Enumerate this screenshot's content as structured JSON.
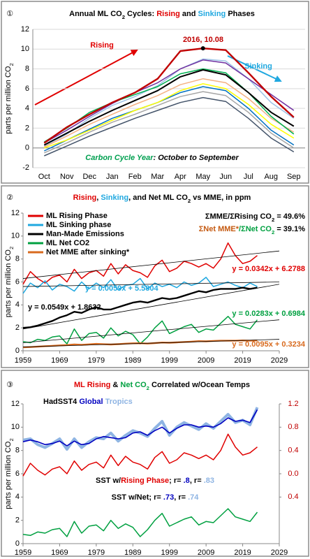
{
  "chart_data": [
    {
      "type": "line",
      "label": "①",
      "title": [
        {
          "text": "Annual ML CO"
        },
        {
          "text": "2",
          "sub": true
        },
        {
          "text": " Cycles: "
        },
        {
          "text": "Rising",
          "color": "#e00000"
        },
        {
          "text": " and "
        },
        {
          "text": "Sinking",
          "color": "#1fa8e0"
        },
        {
          "text": " Phases"
        }
      ],
      "ylabel": [
        {
          "text": "parts per million CO"
        },
        {
          "text": "2",
          "sub": true
        }
      ],
      "categories": [
        "Oct",
        "Nov",
        "Dec",
        "Jan",
        "Feb",
        "Mar",
        "Apr",
        "May",
        "Jun",
        "Jul",
        "Aug",
        "Sep"
      ],
      "ylim": [
        -2,
        12
      ],
      "yticks": [
        -2,
        0,
        2,
        4,
        6,
        8,
        10,
        12
      ],
      "grid": true,
      "series": [
        {
          "color": "#a6a6a6",
          "values": [
            -0.5,
            0.5,
            1.6,
            2.6,
            3.4,
            4.3,
            5.2,
            5.7,
            5.3,
            3.6,
            1.5,
            0.0
          ]
        },
        {
          "color": "#44546a",
          "values": [
            -0.8,
            0.2,
            1.2,
            2.1,
            3.0,
            3.8,
            4.6,
            5.1,
            4.7,
            3.0,
            1.0,
            -0.4
          ]
        },
        {
          "color": "#9dc3e6",
          "values": [
            0.2,
            1.4,
            3.0,
            4.3,
            5.2,
            6.3,
            8.0,
            9.0,
            8.8,
            7.0,
            4.6,
            3.0
          ]
        },
        {
          "color": "#f4b183",
          "values": [
            0.1,
            1.2,
            2.4,
            3.4,
            4.4,
            5.3,
            6.4,
            7.0,
            6.6,
            5.0,
            3.0,
            1.6
          ]
        },
        {
          "color": "#0070c0",
          "values": [
            -0.3,
            0.8,
            1.9,
            3.0,
            3.8,
            4.6,
            5.6,
            6.2,
            5.8,
            4.0,
            1.8,
            0.3
          ]
        },
        {
          "color": "#ffff00",
          "values": [
            0.0,
            0.8,
            1.8,
            2.8,
            3.8,
            4.6,
            5.8,
            6.5,
            6.0,
            4.4,
            2.4,
            1.0
          ]
        },
        {
          "color": "#7030a0",
          "values": [
            0.5,
            1.8,
            3.2,
            4.5,
            5.6,
            6.6,
            8.0,
            8.9,
            8.6,
            7.0,
            5.4,
            3.8
          ]
        },
        {
          "color": "#00b050",
          "values": [
            0.6,
            2.0,
            3.6,
            4.6,
            5.4,
            6.2,
            7.5,
            8.0,
            7.6,
            5.6,
            3.2,
            1.4
          ]
        },
        {
          "color": "#000000",
          "values": [
            0.3,
            1.5,
            2.7,
            3.8,
            4.8,
            5.8,
            7.2,
            7.9,
            7.4,
            5.6,
            3.6,
            2.2
          ]
        },
        {
          "color": "#c00000",
          "values": [
            0.5,
            2.1,
            3.4,
            4.6,
            5.6,
            7.0,
            9.8,
            10.08,
            9.9,
            7.6,
            5.2,
            3.1
          ]
        }
      ],
      "annotations": [
        [
          {
            "text": "2016, 10.08",
            "color": "#c00000"
          }
        ],
        [
          {
            "text": "Rising",
            "color": "#e00000"
          }
        ],
        [
          {
            "text": "Sinking",
            "color": "#1fa8e0"
          }
        ],
        [
          {
            "text": "Carbon Cycle Year",
            "color": "#00a050",
            "italic": true
          },
          {
            "text": ": October to September",
            "italic": true
          }
        ]
      ]
    },
    {
      "type": "line",
      "label": "②",
      "title": [
        {
          "text": "Rising",
          "color": "#e00000"
        },
        {
          "text": ", "
        },
        {
          "text": "Sinking",
          "color": "#1fa8e0"
        },
        {
          "text": ", and Net ML CO"
        },
        {
          "text": "2",
          "sub": true
        },
        {
          "text": " vs MME, in ppm"
        }
      ],
      "ylabel": [
        {
          "text": "parts per million CO"
        },
        {
          "text": "2",
          "sub": true
        }
      ],
      "x": [
        1959,
        1961,
        1963,
        1965,
        1967,
        1969,
        1971,
        1973,
        1975,
        1977,
        1979,
        1981,
        1983,
        1985,
        1987,
        1989,
        1991,
        1993,
        1995,
        1997,
        1999,
        2001,
        2003,
        2005,
        2007,
        2009,
        2011,
        2013,
        2015,
        2017,
        2019,
        2021,
        2023
      ],
      "xlim": [
        1959,
        2029
      ],
      "xticks": [
        1959,
        1969,
        1979,
        1989,
        1999,
        2009,
        2019,
        2029
      ],
      "ylim": [
        0,
        12
      ],
      "yticks": [
        0,
        2,
        4,
        6,
        8,
        10,
        12
      ],
      "grid": false,
      "series": [
        {
          "name": "ML Rising Phase",
          "color": "#e00000",
          "values": [
            5.8,
            6.9,
            6.3,
            5.9,
            6.4,
            6.6,
            6.0,
            7.1,
            6.3,
            6.8,
            7.0,
            6.5,
            7.6,
            6.7,
            7.5,
            7.0,
            6.8,
            6.4,
            7.4,
            7.9,
            6.9,
            7.2,
            7.8,
            7.6,
            7.3,
            7.6,
            7.2,
            8.0,
            9.4,
            8.3,
            7.6,
            7.8,
            8.3
          ]
        },
        {
          "name": "ML Sinking phase",
          "color": "#1fa8e0",
          "values": [
            5.0,
            5.9,
            5.5,
            6.1,
            5.3,
            5.8,
            5.6,
            5.2,
            6.0,
            5.4,
            5.9,
            5.5,
            6.2,
            5.3,
            5.7,
            5.8,
            6.3,
            5.4,
            5.9,
            5.6,
            5.8,
            5.5,
            6.0,
            5.7,
            5.9,
            6.4,
            5.6,
            5.8,
            6.0,
            5.7,
            5.5,
            5.9,
            5.6
          ]
        },
        {
          "name": "Man-Made Emissions",
          "color": "#000000",
          "values": [
            2.0,
            2.05,
            2.2,
            2.4,
            2.6,
            2.9,
            3.1,
            3.4,
            3.3,
            3.6,
            3.8,
            3.6,
            3.6,
            3.8,
            4.0,
            4.2,
            4.3,
            4.2,
            4.4,
            4.6,
            4.5,
            4.6,
            4.8,
            5.0,
            5.2,
            5.1,
            5.3,
            5.4,
            5.4,
            5.4,
            5.5,
            5.4,
            5.5
          ]
        },
        {
          "name": "ML Net CO2",
          "color": "#00a040",
          "values": [
            0.8,
            0.7,
            1.0,
            0.9,
            1.2,
            1.3,
            0.6,
            1.9,
            0.9,
            1.5,
            1.6,
            1.1,
            2.0,
            1.3,
            1.7,
            1.4,
            0.6,
            1.2,
            2.0,
            2.6,
            1.5,
            1.8,
            2.1,
            2.3,
            1.6,
            1.9,
            1.8,
            2.4,
            3.0,
            2.3,
            2.1,
            1.9,
            2.7
          ]
        },
        {
          "name": "Net MME after sinking*",
          "color": "#d86a1e",
          "values": [
            0.3,
            0.32,
            0.36,
            0.4,
            0.43,
            0.47,
            0.5,
            0.55,
            0.52,
            0.56,
            0.6,
            0.57,
            0.55,
            0.58,
            0.62,
            0.65,
            0.66,
            0.63,
            0.67,
            0.72,
            0.7,
            0.73,
            0.77,
            0.8,
            0.84,
            0.82,
            0.86,
            0.88,
            0.88,
            0.88,
            0.9,
            0.88,
            0.9
          ]
        }
      ],
      "trendlines": [
        {
          "color": "#000000",
          "x": [
            1959,
            2029
          ],
          "values": [
            6.3,
            8.7
          ]
        },
        {
          "color": "#000000",
          "x": [
            1959,
            2029
          ],
          "values": [
            5.6,
            6.0
          ]
        },
        {
          "color": "#000000",
          "x": [
            1959,
            2029
          ],
          "values": [
            1.9,
            5.8
          ]
        },
        {
          "color": "#000000",
          "x": [
            1959,
            2029
          ],
          "values": [
            0.7,
            2.7
          ]
        },
        {
          "color": "#000000",
          "x": [
            1959,
            2029
          ],
          "values": [
            0.33,
            1.0
          ]
        }
      ],
      "annotations": [
        [
          {
            "text": "ΣMME/ΣRising CO"
          },
          {
            "text": "2",
            "sub": true
          },
          {
            "text": " = 49.6%"
          }
        ],
        [
          {
            "text": "ΣNet MME*",
            "color": "#c55a11"
          },
          {
            "text": "/ΣNet CO",
            "color": "#00a040"
          },
          {
            "text": "2",
            "sub": true,
            "color": "#00a040"
          },
          {
            "text": " = 39.1%"
          }
        ],
        [
          {
            "text": "y = 0.0342x + 6.2788",
            "color": "#e00000"
          }
        ],
        [
          {
            "text": "y = 0.0059x + 5.5804",
            "color": "#1fa8e0"
          }
        ],
        [
          {
            "text": "y = 0.0549x + 1.8632"
          }
        ],
        [
          {
            "text": "y = 0.0283x + 0.6984",
            "color": "#00a040"
          }
        ],
        [
          {
            "text": "y = 0.0095x + 0.3234",
            "color": "#d86a1e"
          }
        ]
      ]
    },
    {
      "type": "line",
      "label": "③",
      "title": [
        {
          "text": "ML Rising",
          "color": "#e00000"
        },
        {
          "text": " & "
        },
        {
          "text": "Net CO",
          "color": "#00a040"
        },
        {
          "text": "2",
          "sub": true,
          "color": "#00a040"
        },
        {
          "text": " Correlated w/Ocean Temps"
        }
      ],
      "ylabel": [
        {
          "text": "parts per million CO"
        },
        {
          "text": "2",
          "sub": true
        }
      ],
      "x": [
        1959,
        1961,
        1963,
        1965,
        1967,
        1969,
        1971,
        1973,
        1975,
        1977,
        1979,
        1981,
        1983,
        1985,
        1987,
        1989,
        1991,
        1993,
        1995,
        1997,
        1999,
        2001,
        2003,
        2005,
        2007,
        2009,
        2011,
        2013,
        2015,
        2017,
        2019,
        2021,
        2023
      ],
      "xlim": [
        1959,
        2029
      ],
      "xticks": [
        1959,
        1969,
        1979,
        1989,
        1999,
        2009,
        2019,
        2029
      ],
      "ylim": [
        0,
        12
      ],
      "yticks": [
        0,
        2,
        4,
        6,
        8,
        10,
        12
      ],
      "grid": false,
      "y2lim": [
        -1.2,
        1.2
      ],
      "y2ticks": [
        1.2,
        0.8,
        0.4,
        {
          "value": 0,
          "label": "0.0"
        },
        {
          "value": -0.4,
          "label": "0.4"
        }
      ],
      "y2color": "#c00000",
      "series": [
        {
          "color": "#e00000",
          "values": [
            5.8,
            6.9,
            6.3,
            5.9,
            6.4,
            6.6,
            6.0,
            7.1,
            6.3,
            6.8,
            7.0,
            6.5,
            7.6,
            6.7,
            7.5,
            7.0,
            6.8,
            6.4,
            7.4,
            7.9,
            6.9,
            7.2,
            7.8,
            7.6,
            7.3,
            7.6,
            7.2,
            8.0,
            9.4,
            8.3,
            7.6,
            7.8,
            8.3
          ]
        },
        {
          "color": "#00a040",
          "values": [
            0.8,
            0.7,
            1.0,
            0.9,
            1.2,
            1.3,
            0.6,
            1.9,
            0.9,
            1.5,
            1.6,
            1.1,
            2.0,
            1.3,
            1.7,
            1.4,
            0.6,
            1.2,
            2.0,
            2.6,
            1.5,
            1.8,
            2.1,
            2.3,
            1.6,
            1.9,
            1.8,
            2.4,
            3.0,
            2.3,
            2.1,
            1.9,
            2.7
          ]
        },
        {
          "color": "#8eb4e3",
          "axis": "y2",
          "values": [
            0.58,
            0.6,
            0.5,
            0.45,
            0.52,
            0.6,
            0.42,
            0.6,
            0.45,
            0.55,
            0.62,
            0.6,
            0.7,
            0.56,
            0.66,
            0.74,
            0.7,
            0.64,
            0.78,
            0.9,
            0.66,
            0.8,
            0.88,
            0.82,
            0.76,
            0.86,
            0.78,
            0.9,
            1.02,
            0.88,
            0.92,
            0.84,
            1.14
          ]
        },
        {
          "color": "#0000c0",
          "axis": "y2",
          "values": [
            0.55,
            0.58,
            0.55,
            0.5,
            0.52,
            0.56,
            0.48,
            0.56,
            0.5,
            0.52,
            0.6,
            0.64,
            0.62,
            0.6,
            0.62,
            0.7,
            0.72,
            0.66,
            0.74,
            0.8,
            0.7,
            0.78,
            0.84,
            0.84,
            0.8,
            0.82,
            0.8,
            0.86,
            0.96,
            0.9,
            0.92,
            0.88,
            1.1
          ]
        }
      ],
      "annotations": [
        [
          {
            "text": "HadSST4 "
          },
          {
            "text": "Global",
            "color": "#0000c0"
          },
          {
            "text": " "
          },
          {
            "text": "Tropics",
            "color": "#8eb4e3"
          }
        ],
        [
          {
            "text": "SST w/"
          },
          {
            "text": "Rising Phase",
            "color": "#e00000"
          },
          {
            "text": "; r= "
          },
          {
            "text": ".8",
            "color": "#0000c0"
          },
          {
            "text": ", r= "
          },
          {
            "text": ".83",
            "color": "#8eb4e3"
          }
        ],
        [
          {
            "text": "SST w/Net; r= "
          },
          {
            "text": ".73",
            "color": "#0000c0"
          },
          {
            "text": ", r= "
          },
          {
            "text": ".74",
            "color": "#8eb4e3"
          }
        ]
      ]
    }
  ]
}
